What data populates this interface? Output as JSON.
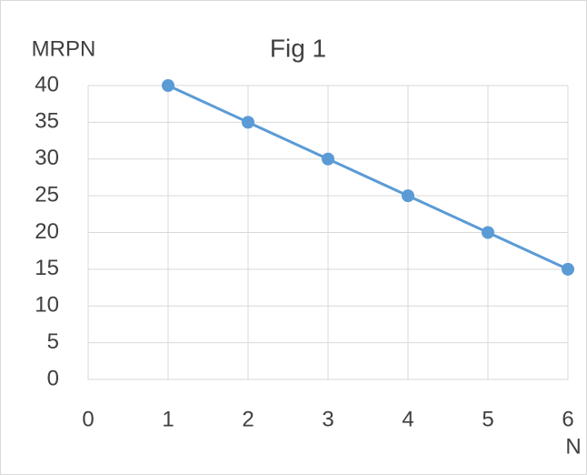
{
  "chart_data": {
    "type": "line",
    "title": "Fig 1",
    "y_label": "MRPN",
    "x_label": "N",
    "x": [
      1,
      2,
      3,
      4,
      5,
      6
    ],
    "series": [
      {
        "name": "MRPN",
        "color": "#5b9bd5",
        "values": [
          40,
          35,
          30,
          25,
          20,
          15
        ]
      }
    ],
    "xlim": [
      0,
      6
    ],
    "xticks": [
      0,
      1,
      2,
      3,
      4,
      5,
      6
    ],
    "ylim": [
      0,
      40
    ],
    "yticks": [
      0,
      5,
      10,
      15,
      20,
      25,
      30,
      35,
      40
    ],
    "grid": true,
    "markers": true
  }
}
